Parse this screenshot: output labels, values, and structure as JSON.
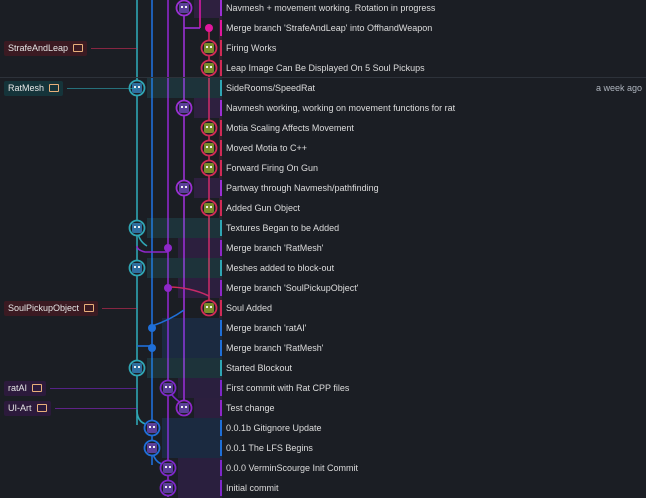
{
  "commits": [
    {
      "message": "Navmesh + movement working. Rotation in progress",
      "lane": 4,
      "color": "#9b2fd4"
    },
    {
      "message": "Merge branch 'StrafeAndLeap' into OffhandWeapon",
      "lane": 5,
      "color": "#e0179d",
      "merge": true
    },
    {
      "message": "Firing Works",
      "lane": 5,
      "color": "#d12b56"
    },
    {
      "message": "Leap Image Can Be Displayed On 5 Soul Pickups",
      "lane": 5,
      "color": "#d12b56"
    },
    {
      "message": "SideRooms/SpeedRat",
      "lane": 0,
      "color": "#2fa6b4"
    },
    {
      "message": "Navmesh working, working on movement functions for rat",
      "lane": 4,
      "color": "#9b2fd4"
    },
    {
      "message": "Motia Scaling Affects Movement",
      "lane": 5,
      "color": "#d12b56"
    },
    {
      "message": "Moved Motia to C++",
      "lane": 5,
      "color": "#d12b56"
    },
    {
      "message": "Forward Firing On Gun",
      "lane": 5,
      "color": "#d12b56"
    },
    {
      "message": "Partway through Navmesh/pathfinding",
      "lane": 4,
      "color": "#9b2fd4"
    },
    {
      "message": "Added Gun Object",
      "lane": 5,
      "color": "#d12b56"
    },
    {
      "message": "Textures Began to be Added",
      "lane": 0,
      "color": "#2fa6b4"
    },
    {
      "message": "Merge branch 'RatMesh'",
      "lane": 2,
      "color": "#8e27c9",
      "merge": true
    },
    {
      "message": "Meshes added to block-out",
      "lane": 0,
      "color": "#2fa6b4"
    },
    {
      "message": "Merge branch 'SoulPickupObject'",
      "lane": 2,
      "color": "#8e27c9",
      "merge": true
    },
    {
      "message": "Soul Added",
      "lane": 5,
      "color": "#d12b56"
    },
    {
      "message": "Merge branch 'ratAI'",
      "lane": 1,
      "color": "#1f6fd8",
      "merge": true
    },
    {
      "message": "Merge branch 'RatMesh'",
      "lane": 1,
      "color": "#1f6fd8",
      "merge": true
    },
    {
      "message": "Started Blockout",
      "lane": 0,
      "color": "#2fa6b4"
    },
    {
      "message": "First commit with Rat CPP files",
      "lane": 3,
      "color": "#7d27c9"
    },
    {
      "message": "Test change",
      "lane": 4,
      "color": "#8e27c9"
    },
    {
      "message": "0.0.1b Gitignore Update",
      "lane": 1,
      "color": "#1f6fd8"
    },
    {
      "message": "0.0.1 The LFS Begins",
      "lane": 1,
      "color": "#1f6fd8"
    },
    {
      "message": "0.0.0 VerminScourge Init Commit",
      "lane": 2,
      "color": "#7d27c9"
    },
    {
      "message": "Initial commit",
      "lane": 2,
      "color": "#7d27c9"
    }
  ],
  "branches": [
    {
      "name": "StrafeAndLeap",
      "row": 2,
      "color": "#d12b56",
      "bg": "#3b1a22"
    },
    {
      "name": "RatMesh",
      "row": 4,
      "color": "#2fa6b4",
      "bg": "#15343a"
    },
    {
      "name": "SoulPickupObject",
      "row": 15,
      "color": "#d12b56",
      "bg": "#3b1a22"
    },
    {
      "name": "ratAI",
      "row": 19,
      "color": "#7d27c9",
      "bg": "#2c1a3c"
    },
    {
      "name": "UI-Art",
      "row": 20,
      "color": "#8e27c9",
      "bg": "#2c1a3c"
    }
  ],
  "date_label": "a week ago",
  "lane_colors": [
    "#2fa6b4",
    "#1f6fd8",
    "#8e27c9",
    "#7d27c9",
    "#9b2fd4",
    "#d12b56"
  ]
}
